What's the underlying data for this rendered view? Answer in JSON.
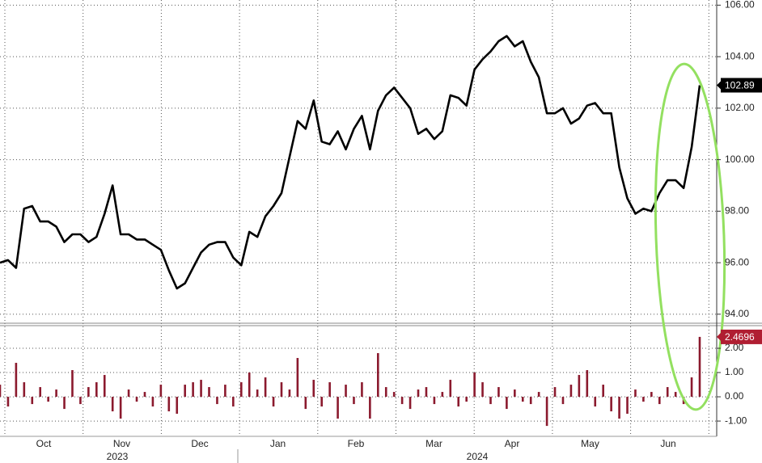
{
  "chart_data": [
    {
      "type": "line",
      "color": "#000000",
      "values": [
        96.0,
        96.1,
        95.8,
        98.1,
        98.2,
        97.6,
        97.6,
        97.4,
        96.8,
        97.1,
        97.1,
        96.8,
        97.0,
        97.9,
        99.0,
        97.1,
        97.1,
        96.9,
        96.9,
        96.7,
        96.5,
        95.7,
        95.0,
        95.2,
        95.8,
        96.4,
        96.7,
        96.8,
        96.8,
        96.2,
        95.9,
        97.2,
        97.0,
        97.8,
        98.2,
        98.7,
        100.1,
        101.5,
        101.2,
        102.3,
        100.7,
        100.6,
        101.1,
        100.4,
        101.2,
        101.7,
        100.4,
        101.9,
        102.5,
        102.8,
        102.4,
        102.0,
        101.0,
        101.2,
        100.8,
        101.1,
        102.5,
        102.4,
        102.1,
        103.5,
        103.9,
        104.2,
        104.6,
        104.8,
        104.4,
        104.6,
        103.8,
        103.2,
        101.8,
        101.8,
        102.0,
        101.4,
        101.6,
        102.1,
        102.2,
        101.8,
        101.8,
        99.7,
        98.5,
        97.9,
        98.1,
        98.0,
        98.7,
        99.2,
        99.2,
        98.9,
        100.5,
        102.89
      ],
      "ylim": [
        93.65,
        106.2
      ],
      "yticks": [
        {
          "value": 94,
          "label": "94.00"
        },
        {
          "value": 96,
          "label": "96.00"
        },
        {
          "value": 98,
          "label": "98.00"
        },
        {
          "value": 100,
          "label": "100.00"
        },
        {
          "value": 102,
          "label": "102.00"
        },
        {
          "value": 104,
          "label": "104.00"
        },
        {
          "value": 106,
          "label": "106.00"
        }
      ],
      "grid": true
    },
    {
      "type": "bar",
      "color": "#8b1a2e",
      "values": [
        0.5,
        -0.4,
        1.4,
        0.6,
        -0.3,
        0.4,
        -0.2,
        0.3,
        -0.5,
        1.1,
        -0.3,
        0.4,
        0.6,
        0.9,
        -0.6,
        -0.9,
        0.3,
        -0.2,
        0.2,
        -0.4,
        0.5,
        -0.6,
        -0.7,
        0.5,
        0.6,
        0.7,
        0.4,
        -0.3,
        0.5,
        -0.4,
        0.6,
        1.0,
        0.3,
        0.8,
        -0.4,
        0.6,
        0.3,
        1.6,
        -0.5,
        0.7,
        -0.4,
        0.6,
        -0.9,
        0.5,
        -0.3,
        0.6,
        -0.9,
        1.8,
        0.4,
        0.2,
        -0.3,
        -0.5,
        0.3,
        0.4,
        -0.3,
        0.2,
        0.7,
        -0.4,
        -0.2,
        1.0,
        0.6,
        -0.3,
        0.4,
        -0.5,
        0.3,
        -0.2,
        -0.3,
        0.2,
        -1.2,
        0.4,
        -0.3,
        0.5,
        0.9,
        1.1,
        -0.4,
        0.5,
        -0.6,
        -0.9,
        -0.7,
        0.3,
        -0.2,
        0.2,
        -0.3,
        0.4,
        0.2,
        -0.3,
        0.8,
        2.4696
      ],
      "ylim": [
        -1.63,
        2.9
      ],
      "yticks": [
        {
          "value": -1,
          "label": "-1.00"
        },
        {
          "value": 0,
          "label": "0.00"
        },
        {
          "value": 1,
          "label": "1.00"
        },
        {
          "value": 2,
          "label": "2.00"
        }
      ],
      "grid": true,
      "x_labels": [
        "Oct",
        "Nov",
        "Dec",
        "Jan",
        "Feb",
        "Mar",
        "Apr",
        "May",
        "Jun"
      ],
      "year_labels": [
        "2023",
        "2024"
      ]
    }
  ]
}
